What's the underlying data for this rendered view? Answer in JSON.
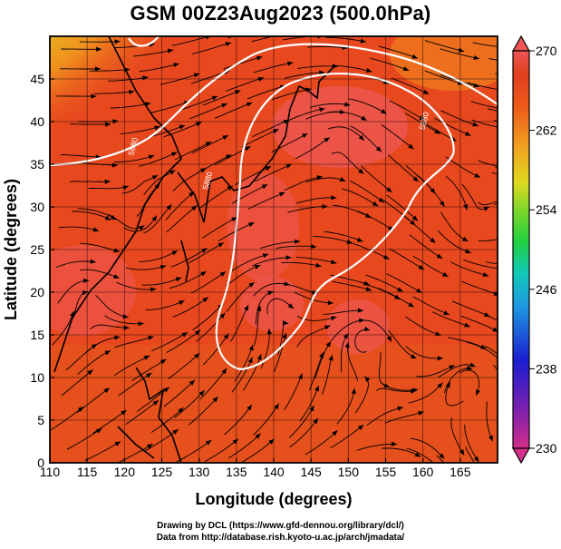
{
  "title": "GSM 00Z23Aug2023 (500.0hPa)",
  "map": {
    "xlabel": "Longitude (degrees)",
    "ylabel": "Latitude (degrees)",
    "lon_range": [
      110,
      170
    ],
    "lat_range": [
      0,
      50
    ],
    "lon_ticks": [
      "110",
      "115",
      "120",
      "125",
      "130",
      "135",
      "140",
      "145",
      "150",
      "155",
      "160",
      "165"
    ],
    "lat_ticks": [
      "0",
      "5",
      "10",
      "15",
      "20",
      "25",
      "30",
      "35",
      "40",
      "45"
    ],
    "contour_labels": [
      {
        "text": "5880",
        "lon": 121.5,
        "lat": 37.0
      },
      {
        "text": "5880",
        "lon": 131.5,
        "lat": 33.0
      },
      {
        "text": "5880",
        "lon": 160.5,
        "lat": 40.0
      }
    ]
  },
  "colorbar": {
    "labels": [
      "270",
      "262",
      "254",
      "246",
      "238",
      "230"
    ],
    "range": [
      230,
      270
    ],
    "colors": [
      "#d42f8a",
      "#7a1fb0",
      "#1b1ed0",
      "#1f9ae0",
      "#10c8b8",
      "#20d040",
      "#7fd62a",
      "#e0d820",
      "#f0a020",
      "#ee5a1a",
      "#e0401e",
      "#ee5555"
    ]
  },
  "credits": {
    "line1": "Drawing by DCL (https://www.gfd-dennou.org/library/dcl/)",
    "line2": "Data from http://database.rish.kyoto-u.ac.jp/arch/jmadata/"
  }
}
